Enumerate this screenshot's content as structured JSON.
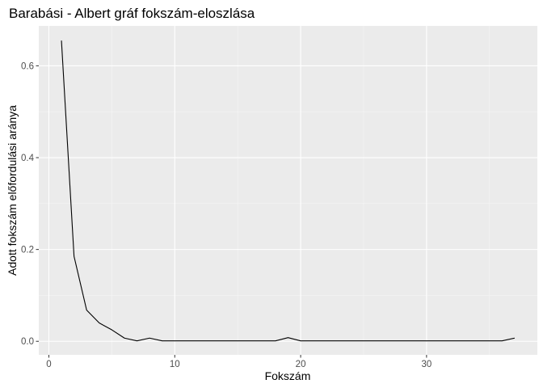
{
  "chart_data": {
    "type": "line",
    "title": "Barabási - Albert gráf fokszám-eloszlása",
    "xlabel": "Fokszám",
    "ylabel": "Adott fokszám előfordulási aránya",
    "xlim": [
      -0.8,
      38.8
    ],
    "ylim": [
      -0.0295,
      0.687
    ],
    "x_ticks": [
      0,
      10,
      20,
      30
    ],
    "x_tick_labels": [
      "0",
      "10",
      "20",
      "30"
    ],
    "y_ticks": [
      0.0,
      0.2,
      0.4,
      0.6
    ],
    "y_tick_labels": [
      "0.0",
      "0.2",
      "0.4",
      "0.6"
    ],
    "grid": true,
    "series": [
      {
        "x": [
          1,
          2,
          3,
          4,
          5,
          6,
          7,
          8,
          9,
          10,
          11,
          12,
          13,
          14,
          15,
          16,
          17,
          18,
          19,
          20,
          21,
          22,
          23,
          24,
          25,
          26,
          27,
          28,
          29,
          30,
          31,
          32,
          33,
          34,
          35,
          36,
          37
        ],
        "y": [
          0.655,
          0.185,
          0.068,
          0.04,
          0.025,
          0.007,
          0.001,
          0.007,
          0.001,
          0.001,
          0.001,
          0.001,
          0.001,
          0.001,
          0.001,
          0.001,
          0.001,
          0.001,
          0.008,
          0.001,
          0.001,
          0.001,
          0.001,
          0.001,
          0.001,
          0.001,
          0.001,
          0.001,
          0.001,
          0.001,
          0.001,
          0.001,
          0.001,
          0.001,
          0.001,
          0.001,
          0.007
        ],
        "color": "#000000"
      }
    ],
    "colors": {
      "panel_background": "#ebebeb",
      "grid_major": "#ffffff",
      "grid_minor": "#f5f5f5",
      "tick_label": "#4d4d4d",
      "line": "#000000"
    }
  }
}
